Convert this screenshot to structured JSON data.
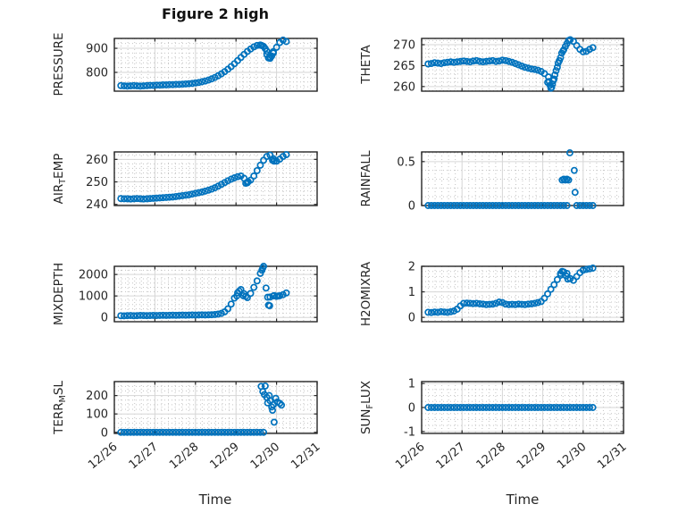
{
  "figure": {
    "title": "Figure 2 high",
    "xlabel": "Time",
    "background": "#ffffff",
    "marker_color": "#0072BD",
    "axis_color": "#262626",
    "major_grid_color": "#d6d6d6",
    "minor_grid_color": "#c4c4c4",
    "text_color": "#262626"
  },
  "x_axis": {
    "xlim": [
      0,
      5
    ],
    "tick_days": [
      0,
      1,
      2,
      3,
      4,
      5
    ],
    "tick_labels": [
      "12/26",
      "12/27",
      "12/28",
      "12/29",
      "12/30",
      "12/31"
    ],
    "minor_step_days": 0.16667
  },
  "chart_data": [
    {
      "type": "scatter",
      "name": "PRESSURE",
      "row": 0,
      "col": 0,
      "ylabel_segments": [
        {
          "t": "PRESSURE"
        }
      ],
      "yticks": [
        800,
        900
      ],
      "ylim": [
        722,
        941
      ],
      "y_minor_step": 20,
      "series": {
        "x0": 0.16,
        "dx": 0.08,
        "values": [
          745,
          744,
          743,
          744,
          745,
          744,
          743,
          744,
          745,
          746,
          746,
          747,
          747,
          748,
          748,
          749,
          749,
          750,
          750,
          751,
          752,
          753,
          754,
          756,
          758,
          761,
          764,
          768,
          773,
          779,
          786,
          794,
          803,
          813,
          824,
          836,
          849,
          862,
          875,
          887,
          897,
          906,
          912,
          914,
          908,
          888,
          863,
          880,
          904,
          924,
          934,
          928
        ]
      },
      "extra_points": [
        [
          3.6,
          913
        ],
        [
          3.64,
          911
        ],
        [
          3.72,
          899
        ],
        [
          3.76,
          874
        ],
        [
          3.8,
          860
        ],
        [
          3.84,
          858
        ],
        [
          3.88,
          868
        ],
        [
          3.92,
          886
        ]
      ]
    },
    {
      "type": "scatter",
      "name": "THETA",
      "row": 0,
      "col": 1,
      "ylabel_segments": [
        {
          "t": "THETA"
        }
      ],
      "yticks": [
        260,
        265,
        270
      ],
      "ylim": [
        258.9,
        271.5
      ],
      "y_minor_step": 1,
      "series": {
        "x0": 0.16,
        "dx": 0.08,
        "values": [
          265.4,
          265.5,
          265.7,
          265.6,
          265.5,
          265.7,
          265.8,
          265.9,
          265.8,
          265.9,
          266.0,
          266.1,
          266.0,
          265.9,
          266.1,
          266.2,
          266.0,
          265.9,
          266.0,
          266.1,
          266.2,
          266.0,
          266.1,
          266.3,
          266.2,
          266.0,
          265.8,
          265.5,
          265.2,
          264.9,
          264.6,
          264.4,
          264.2,
          264.1,
          263.9,
          263.6,
          263.1,
          261.0,
          259.6,
          261.8,
          264.6,
          266.9,
          268.8,
          270.3,
          271.2,
          270.8,
          269.8,
          268.9,
          268.3,
          268.4,
          268.9,
          269.3
        ]
      },
      "extra_points": [
        [
          3.14,
          262.3
        ],
        [
          3.16,
          261.2
        ],
        [
          3.18,
          260.3
        ],
        [
          3.22,
          259.8
        ],
        [
          3.24,
          260.6
        ],
        [
          3.26,
          261.4
        ],
        [
          3.3,
          262.8
        ],
        [
          3.33,
          263.8
        ],
        [
          3.38,
          265.6
        ],
        [
          3.41,
          266.2
        ],
        [
          3.47,
          268.0
        ],
        [
          3.5,
          268.5
        ],
        [
          3.56,
          269.6
        ],
        [
          3.64,
          271.0
        ]
      ]
    },
    {
      "type": "scatter",
      "name": "AIR_TEMP",
      "row": 1,
      "col": 0,
      "ylabel_segments": [
        {
          "t": "AIR"
        },
        {
          "t": "T",
          "sub": true
        },
        {
          "t": "EMP"
        }
      ],
      "yticks": [
        240,
        250,
        260
      ],
      "ylim": [
        239.5,
        263.3
      ],
      "y_minor_step": 2,
      "series": {
        "x0": 0.16,
        "dx": 0.08,
        "values": [
          242.6,
          242.5,
          242.5,
          242.4,
          242.5,
          242.6,
          242.5,
          242.4,
          242.5,
          242.6,
          242.7,
          242.8,
          242.9,
          243.0,
          243.1,
          243.2,
          243.3,
          243.5,
          243.7,
          243.9,
          244.1,
          244.3,
          244.6,
          244.9,
          245.2,
          245.5,
          245.9,
          246.3,
          246.8,
          247.4,
          248.1,
          248.9,
          249.7,
          250.5,
          251.2,
          251.8,
          252.3,
          252.6,
          251.6,
          249.9,
          250.8,
          252.6,
          255.0,
          257.4,
          259.6,
          261.3,
          261.9,
          260.3,
          259.2,
          260.1,
          261.3,
          262.1
        ]
      },
      "extra_points": [
        [
          3.24,
          249.4
        ],
        [
          3.28,
          249.6
        ],
        [
          3.3,
          250.1
        ],
        [
          3.9,
          259.6
        ],
        [
          3.94,
          259.2
        ]
      ]
    },
    {
      "type": "scatter",
      "name": "RAINFALL",
      "row": 1,
      "col": 1,
      "ylabel_segments": [
        {
          "t": "RAINFALL"
        }
      ],
      "yticks": [
        0,
        0.5
      ],
      "ylim": [
        0,
        0.61
      ],
      "y_minor_step": 0.1,
      "series": {
        "x0": 0.16,
        "dx": 0.08,
        "values": [
          0,
          0,
          0,
          0,
          0,
          0,
          0,
          0,
          0,
          0,
          0,
          0,
          0,
          0,
          0,
          0,
          0,
          0,
          0,
          0,
          0,
          0,
          0,
          0,
          0,
          0,
          0,
          0,
          0,
          0,
          0,
          0,
          0,
          0,
          0,
          0,
          0,
          0,
          0,
          0,
          0,
          0,
          0,
          0,
          null,
          null,
          0,
          0,
          0,
          0,
          0,
          0
        ]
      },
      "extra_points": [
        [
          3.48,
          0.29
        ],
        [
          3.52,
          0.3
        ],
        [
          3.56,
          0.29
        ],
        [
          3.6,
          0.3
        ],
        [
          3.64,
          0.29
        ],
        [
          3.67,
          0.6
        ],
        [
          3.78,
          0.4
        ],
        [
          3.8,
          0.15
        ]
      ]
    },
    {
      "type": "scatter",
      "name": "MIXDEPTH",
      "row": 2,
      "col": 0,
      "ylabel_segments": [
        {
          "t": "MIXDEPTH"
        }
      ],
      "yticks": [
        0,
        1000,
        2000
      ],
      "ylim": [
        -200,
        2380
      ],
      "y_minor_step": 200,
      "series": {
        "x0": 0.16,
        "dx": 0.08,
        "values": [
          80,
          75,
          85,
          90,
          80,
          85,
          95,
          90,
          85,
          90,
          95,
          90,
          95,
          100,
          95,
          100,
          105,
          100,
          105,
          110,
          105,
          110,
          115,
          110,
          115,
          120,
          115,
          120,
          125,
          135,
          155,
          190,
          260,
          400,
          620,
          900,
          1150,
          1300,
          1100,
          920,
          1120,
          1400,
          1700,
          2050,
          2380,
          null,
          950,
          1000,
          980,
          1010,
          1060,
          1140
        ]
      },
      "extra_points": [
        [
          3.64,
          2200
        ],
        [
          3.66,
          2300
        ],
        [
          3.74,
          1370
        ],
        [
          3.78,
          940
        ],
        [
          3.8,
          570
        ],
        [
          3.83,
          545
        ],
        [
          3.02,
          1000
        ],
        [
          3.08,
          1230
        ],
        [
          3.18,
          1010
        ],
        [
          3.24,
          980
        ],
        [
          3.94,
          1020
        ],
        [
          4.04,
          1000
        ]
      ]
    },
    {
      "type": "scatter",
      "name": "H2OMIXRA",
      "row": 2,
      "col": 1,
      "ylabel_segments": [
        {
          "t": "H2OMIXRA"
        }
      ],
      "yticks": [
        0,
        1,
        2
      ],
      "ylim": [
        -0.17,
        2.0
      ],
      "y_minor_step": 0.2,
      "series": {
        "x0": 0.16,
        "dx": 0.08,
        "values": [
          0.2,
          0.19,
          0.21,
          0.2,
          0.22,
          0.21,
          0.2,
          0.22,
          0.25,
          0.32,
          0.45,
          0.55,
          0.56,
          0.55,
          0.54,
          0.55,
          0.53,
          0.52,
          0.5,
          0.51,
          0.52,
          0.55,
          0.6,
          0.58,
          0.52,
          0.5,
          0.51,
          0.5,
          0.52,
          0.51,
          0.5,
          0.52,
          0.53,
          0.55,
          0.58,
          0.62,
          0.75,
          0.92,
          1.1,
          1.28,
          1.48,
          1.65,
          1.78,
          1.72,
          1.52,
          1.45,
          1.6,
          1.75,
          1.85,
          1.88,
          1.9,
          1.93
        ]
      },
      "extra_points": [
        [
          3.44,
          1.72
        ],
        [
          3.48,
          1.8
        ],
        [
          3.58,
          1.62
        ],
        [
          3.62,
          1.5
        ]
      ]
    },
    {
      "type": "scatter",
      "name": "TERR_MSL",
      "row": 3,
      "col": 0,
      "ylabel_segments": [
        {
          "t": "TERR"
        },
        {
          "t": "M",
          "sub": true
        },
        {
          "t": "SL"
        }
      ],
      "yticks": [
        0,
        100,
        200
      ],
      "ylim": [
        -6,
        276
      ],
      "y_minor_step": 25,
      "series": {
        "x0": 0.16,
        "dx": 0.08,
        "values": [
          0,
          0,
          0,
          0,
          0,
          0,
          0,
          0,
          0,
          0,
          0,
          0,
          0,
          0,
          0,
          0,
          0,
          0,
          0,
          0,
          0,
          0,
          0,
          0,
          0,
          0,
          0,
          0,
          0,
          0,
          0,
          0,
          0,
          0,
          0,
          0,
          0,
          0,
          0,
          0,
          0,
          0,
          0,
          0,
          0,
          null,
          null,
          null,
          null,
          null,
          null,
          null
        ]
      },
      "extra_points": [
        [
          3.62,
          250
        ],
        [
          3.66,
          222
        ],
        [
          3.7,
          205
        ],
        [
          3.72,
          252
        ],
        [
          3.76,
          190
        ],
        [
          3.78,
          160
        ],
        [
          3.82,
          200
        ],
        [
          3.84,
          172
        ],
        [
          3.88,
          138
        ],
        [
          3.9,
          120
        ],
        [
          3.92,
          150
        ],
        [
          3.94,
          55
        ],
        [
          3.98,
          185
        ],
        [
          4.02,
          165
        ],
        [
          4.08,
          158
        ],
        [
          4.12,
          148
        ]
      ]
    },
    {
      "type": "scatter",
      "name": "SUN_FLUX",
      "row": 3,
      "col": 1,
      "ylabel_segments": [
        {
          "t": "SUN"
        },
        {
          "t": "F",
          "sub": true
        },
        {
          "t": "LUX"
        }
      ],
      "yticks": [
        -1,
        0,
        1
      ],
      "ylim": [
        -1.08,
        1.08
      ],
      "y_minor_step": 0.25,
      "series": {
        "x0": 0.16,
        "dx": 0.08,
        "values": [
          0,
          0,
          0,
          0,
          0,
          0,
          0,
          0,
          0,
          0,
          0,
          0,
          0,
          0,
          0,
          0,
          0,
          0,
          0,
          0,
          0,
          0,
          0,
          0,
          0,
          0,
          0,
          0,
          0,
          0,
          0,
          0,
          0,
          0,
          0,
          0,
          0,
          0,
          0,
          0,
          0,
          0,
          0,
          0,
          0,
          0,
          0,
          0,
          0,
          0,
          0,
          0
        ]
      },
      "extra_points": []
    }
  ]
}
